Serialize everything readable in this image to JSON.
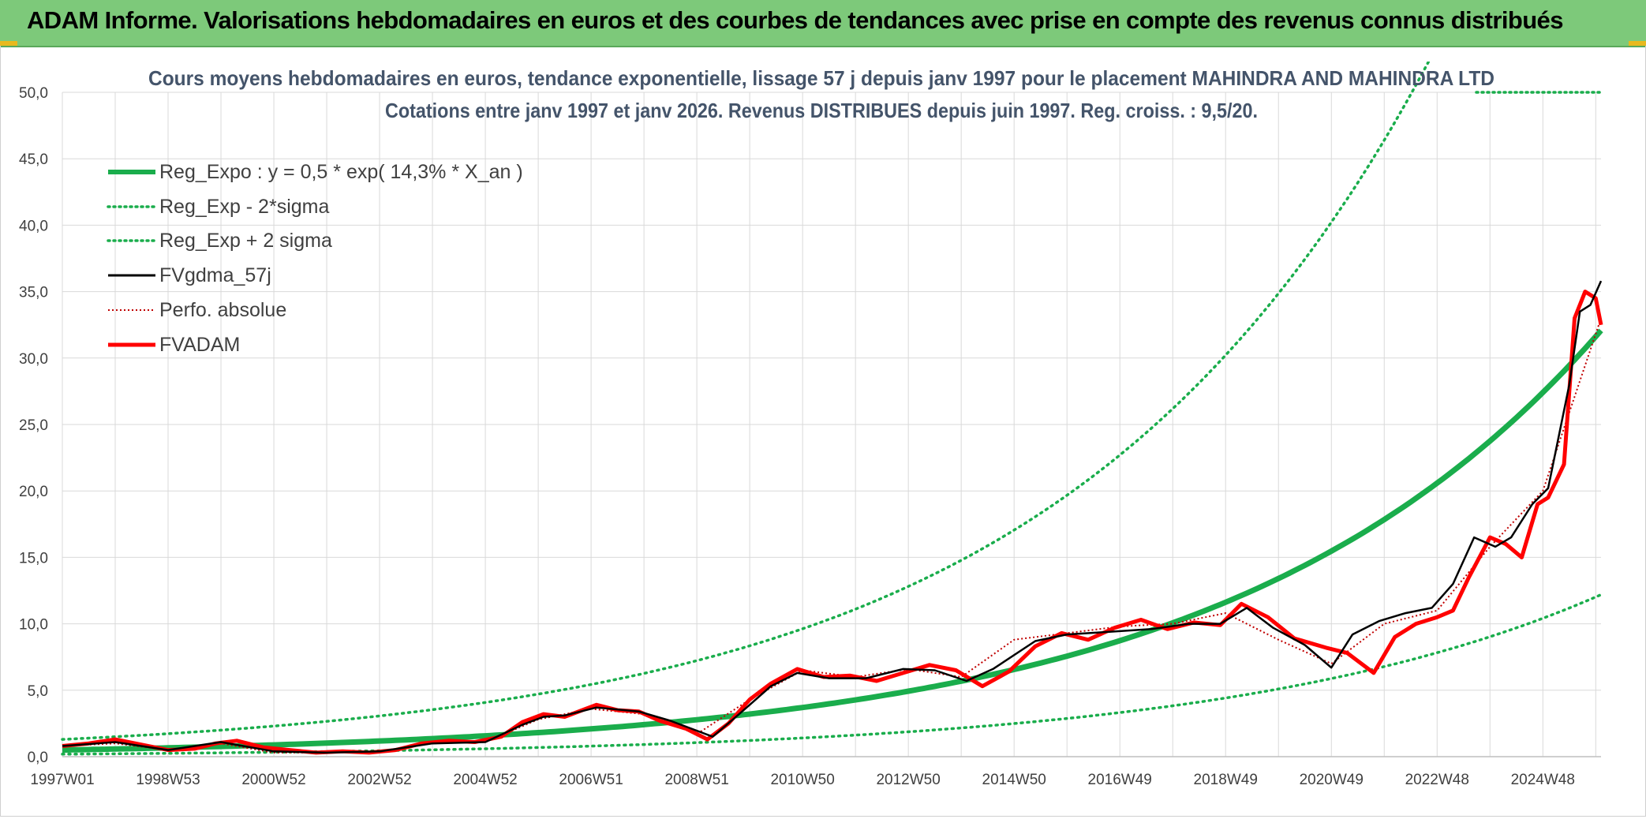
{
  "header": {
    "title": "ADAM Informe. Valorisations hebdomadaires en euros et des courbes de tendances avec prise en compte des revenus connus distribués"
  },
  "colors": {
    "banner": "#7dc97a",
    "trend": "#1aad4c",
    "fv": "#000000",
    "fvadam": "#ff0000",
    "perf": "#c00000",
    "grid": "#d9d9d9"
  },
  "chart_data": {
    "type": "line",
    "title": "Cours moyens hebdomadaires en euros, tendance exponentielle, lissage 57 j depuis janv 1997 pour le placement MAHINDRA AND MAHINDRA LTD",
    "subtitle": "Cotations entre janv 1997 et janv 2026. Revenus DISTRIBUES depuis juin 1997. Reg. croiss. : 9,5/20.",
    "xlabel": "",
    "ylabel": "",
    "xlim": [
      1997.0,
      2026.1
    ],
    "ylim": [
      0,
      50
    ],
    "grid": true,
    "legend_position": "top-left",
    "y_ticks": [
      "0,0",
      "5,0",
      "10,0",
      "15,0",
      "20,0",
      "25,0",
      "30,0",
      "35,0",
      "40,0",
      "45,0",
      "50,0"
    ],
    "x_ticks": [
      {
        "label": "1997W01",
        "x": 1997.0
      },
      {
        "label": "1998W53",
        "x": 1999.0
      },
      {
        "label": "2000W52",
        "x": 2001.0
      },
      {
        "label": "2002W52",
        "x": 2003.0
      },
      {
        "label": "2004W52",
        "x": 2005.0
      },
      {
        "label": "2006W51",
        "x": 2007.0
      },
      {
        "label": "2008W51",
        "x": 2009.0
      },
      {
        "label": "2010W50",
        "x": 2011.0
      },
      {
        "label": "2012W50",
        "x": 2013.0
      },
      {
        "label": "2014W50",
        "x": 2015.0
      },
      {
        "label": "2016W49",
        "x": 2017.0
      },
      {
        "label": "2018W49",
        "x": 2019.0
      },
      {
        "label": "2020W49",
        "x": 2021.0
      },
      {
        "label": "2022W48",
        "x": 2023.0
      },
      {
        "label": "2024W48",
        "x": 2025.0
      }
    ],
    "trend": {
      "a": 0.5,
      "rate": 0.143,
      "start": 1997.0,
      "band_factor_upper": 2.6,
      "band_factor_lower": 0.38
    },
    "legend": [
      {
        "key": "trend",
        "label": "Reg_Expo : y = 0,5 * exp( 14,3% *  X_an )"
      },
      {
        "key": "lower",
        "label": "Reg_Exp - 2*sigma"
      },
      {
        "key": "upper",
        "label": "Reg_Exp + 2 sigma"
      },
      {
        "key": "fv",
        "label": "FVgdma_57j"
      },
      {
        "key": "perf",
        "label": "Perfo. absolue"
      },
      {
        "key": "fvadam",
        "label": "FVADAM"
      }
    ],
    "series": [
      {
        "name": "FVADAM",
        "x": [
          1997.0,
          1997.5,
          1998.0,
          1998.5,
          1999.0,
          1999.5,
          1999.9,
          2000.3,
          2000.8,
          2001.3,
          2001.8,
          2002.3,
          2002.8,
          2003.3,
          2003.8,
          2004.3,
          2004.8,
          2005.3,
          2005.7,
          2006.1,
          2006.5,
          2006.9,
          2007.1,
          2007.5,
          2007.9,
          2008.3,
          2008.8,
          2009.2,
          2009.6,
          2010.0,
          2010.4,
          2010.9,
          2011.4,
          2011.9,
          2012.4,
          2012.9,
          2013.4,
          2013.9,
          2014.4,
          2014.9,
          2015.4,
          2015.9,
          2016.4,
          2016.9,
          2017.4,
          2017.9,
          2018.4,
          2018.9,
          2019.3,
          2019.8,
          2020.3,
          2020.9,
          2021.3,
          2021.8,
          2022.2,
          2022.6,
          2023.0,
          2023.3,
          2023.6,
          2024.0,
          2024.3,
          2024.6,
          2024.9,
          2025.1,
          2025.4,
          2025.6,
          2025.8,
          2026.0,
          2026.1
        ],
        "values": [
          0.8,
          1.0,
          1.3,
          0.9,
          0.5,
          0.6,
          1.0,
          1.2,
          0.7,
          0.5,
          0.3,
          0.4,
          0.3,
          0.5,
          1.0,
          1.2,
          1.1,
          1.5,
          2.6,
          3.2,
          3.0,
          3.6,
          3.9,
          3.5,
          3.4,
          2.7,
          2.1,
          1.3,
          2.5,
          4.3,
          5.5,
          6.6,
          6.0,
          6.1,
          5.7,
          6.3,
          6.9,
          6.5,
          5.3,
          6.4,
          8.3,
          9.3,
          8.8,
          9.7,
          10.3,
          9.6,
          10.1,
          9.9,
          11.5,
          10.5,
          8.9,
          8.2,
          7.8,
          6.3,
          9.0,
          10.0,
          10.5,
          11.0,
          13.5,
          16.5,
          16.0,
          15.0,
          19.0,
          19.5,
          22.0,
          33.0,
          35.0,
          34.5,
          32.5
        ]
      },
      {
        "name": "FVgdma_57j",
        "x": [
          1997.0,
          1998.0,
          1999.0,
          2000.0,
          2001.0,
          2002.0,
          2003.0,
          2004.0,
          2005.0,
          2005.7,
          2006.1,
          2006.5,
          2007.1,
          2007.9,
          2008.5,
          2009.3,
          2009.8,
          2010.4,
          2010.9,
          2011.5,
          2012.2,
          2012.9,
          2013.5,
          2014.1,
          2014.6,
          2015.4,
          2016.0,
          2016.8,
          2017.6,
          2018.3,
          2018.9,
          2019.4,
          2019.9,
          2020.5,
          2021.0,
          2021.4,
          2021.9,
          2022.4,
          2022.9,
          2023.3,
          2023.7,
          2024.1,
          2024.4,
          2024.8,
          2025.1,
          2025.5,
          2025.7,
          2025.9,
          2026.1
        ],
        "values": [
          0.8,
          1.1,
          0.5,
          1.1,
          0.4,
          0.3,
          0.4,
          1.0,
          1.1,
          2.4,
          3.0,
          3.1,
          3.7,
          3.4,
          2.7,
          1.5,
          3.2,
          5.3,
          6.3,
          5.9,
          5.9,
          6.6,
          6.5,
          5.7,
          6.6,
          8.7,
          9.2,
          9.4,
          9.6,
          10.0,
          10.0,
          11.2,
          9.7,
          8.4,
          6.7,
          9.2,
          10.2,
          10.8,
          11.2,
          13.0,
          16.5,
          15.8,
          16.5,
          19.0,
          20.2,
          28.0,
          33.5,
          34.0,
          35.8
        ]
      },
      {
        "name": "Perfo. absolue",
        "x": [
          1997.0,
          1998.0,
          1999.0,
          2000.0,
          2001.0,
          2002.0,
          2003.0,
          2004.0,
          2005.0,
          2006.0,
          2007.0,
          2008.0,
          2009.0,
          2010.0,
          2011.0,
          2012.0,
          2013.0,
          2014.0,
          2015.0,
          2016.0,
          2017.0,
          2018.0,
          2019.0,
          2020.0,
          2021.0,
          2022.0,
          2023.0,
          2024.0,
          2025.0,
          2026.1
        ],
        "values": [
          0.8,
          1.0,
          0.5,
          1.0,
          0.3,
          0.3,
          0.4,
          1.0,
          1.1,
          2.8,
          3.6,
          3.2,
          1.7,
          4.3,
          6.5,
          6.0,
          6.6,
          6.0,
          8.8,
          9.3,
          9.8,
          10.0,
          10.8,
          8.8,
          7.0,
          10.0,
          11.0,
          15.8,
          20.0,
          33.0
        ]
      }
    ]
  }
}
